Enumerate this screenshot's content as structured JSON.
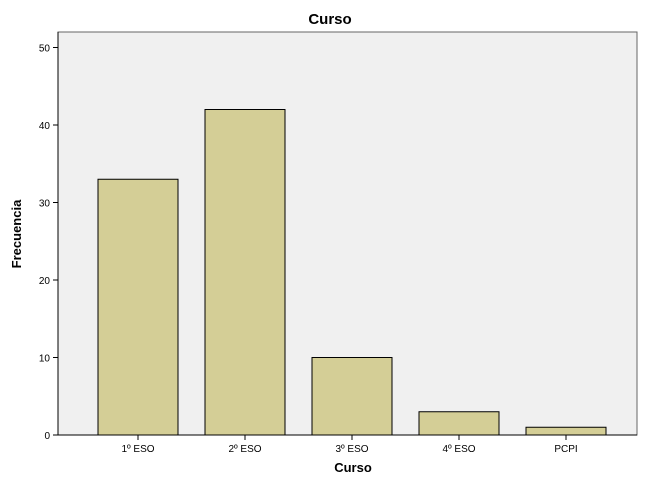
{
  "chart_data": {
    "type": "bar",
    "title": "Curso",
    "xlabel": "Curso",
    "ylabel": "Frecuencia",
    "categories": [
      "1º ESO",
      "2º ESO",
      "3º ESO",
      "4º ESO",
      "PCPI"
    ],
    "values": [
      33,
      42,
      10,
      3,
      1
    ],
    "ylim": [
      0,
      52
    ],
    "yticks": [
      0,
      10,
      20,
      30,
      40,
      50
    ],
    "grid": false,
    "legend": "none",
    "colors": {
      "bar_fill": "#d4ce96",
      "bar_stroke": "#000000",
      "plot_background": "#f0f0f0"
    }
  }
}
